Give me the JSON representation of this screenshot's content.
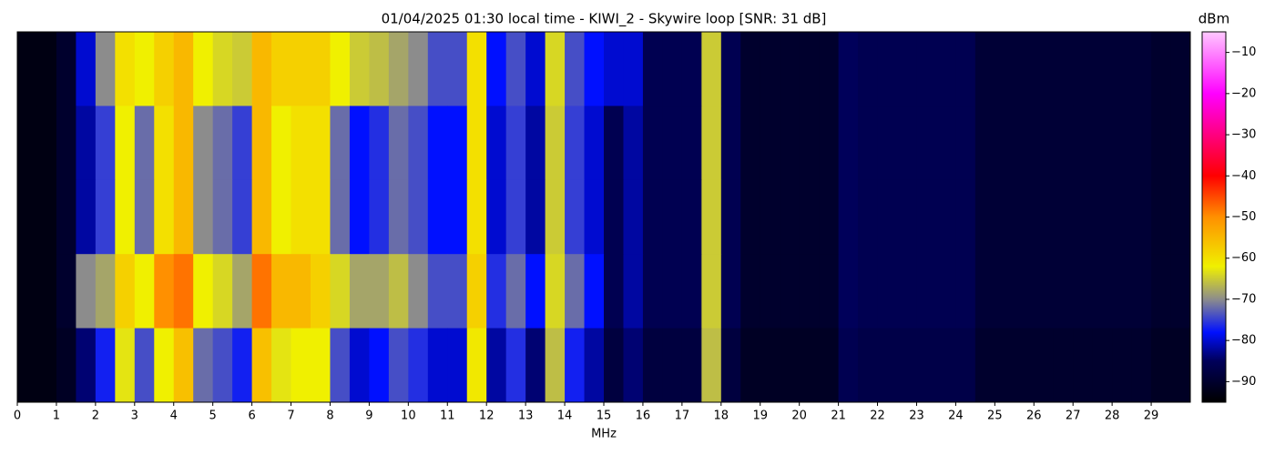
{
  "chart_data": {
    "type": "heatmap",
    "title": "01/04/2025 01:30 local time - KIWI_2 - Skywire loop [SNR: 31 dB]",
    "xlabel": "MHz",
    "colorbar_label": "dBm",
    "xlim": [
      0,
      30
    ],
    "xticks": [
      0,
      1,
      2,
      3,
      4,
      5,
      6,
      7,
      8,
      9,
      10,
      11,
      12,
      13,
      14,
      15,
      16,
      17,
      18,
      19,
      20,
      21,
      22,
      23,
      24,
      25,
      26,
      27,
      28,
      29
    ],
    "clim": [
      -95,
      -5
    ],
    "cticks": [
      {
        "value": -10,
        "label": "−10"
      },
      {
        "value": -20,
        "label": "−20"
      },
      {
        "value": -30,
        "label": "−30"
      },
      {
        "value": -40,
        "label": "−40"
      },
      {
        "value": -50,
        "label": "−50"
      },
      {
        "value": -60,
        "label": "−60"
      },
      {
        "value": -70,
        "label": "−70"
      },
      {
        "value": -80,
        "label": "−80"
      },
      {
        "value": -90,
        "label": "−90"
      }
    ],
    "colormap": [
      {
        "value": -95,
        "color": "#000000"
      },
      {
        "value": -85,
        "color": "#00005a"
      },
      {
        "value": -78,
        "color": "#0010ff"
      },
      {
        "value": -70,
        "color": "#8c8c8c"
      },
      {
        "value": -62,
        "color": "#f0f000"
      },
      {
        "value": -50,
        "color": "#ff9000"
      },
      {
        "value": -40,
        "color": "#ff0000"
      },
      {
        "value": -20,
        "color": "#ff00ff"
      },
      {
        "value": -5,
        "color": "#ffc8ff"
      }
    ],
    "values": [
      [
        -93,
        -93,
        -90,
        -80,
        -70,
        -60,
        -62,
        -58,
        -55,
        -62,
        -64,
        -65,
        -55,
        -58,
        -58,
        -58,
        -62,
        -65,
        -66,
        -68,
        -70,
        -74,
        -74,
        -60,
        -78,
        -74,
        -80,
        -64,
        -74,
        -78,
        -80,
        -80,
        -86,
        -86,
        -86,
        -65,
        -86,
        -90,
        -90,
        -90,
        -90,
        -90,
        -85,
        -86,
        -86,
        -86,
        -86,
        -86,
        -86,
        -89,
        -89,
        -89,
        -89,
        -89,
        -89,
        -89,
        -89,
        -89,
        -90,
        -90
      ],
      [
        -93,
        -93,
        -90,
        -82,
        -75,
        -62,
        -72,
        -60,
        -55,
        -70,
        -72,
        -75,
        -55,
        -62,
        -60,
        -60,
        -72,
        -78,
        -76,
        -72,
        -74,
        -78,
        -78,
        -60,
        -80,
        -75,
        -82,
        -65,
        -75,
        -80,
        -86,
        -82,
        -86,
        -86,
        -86,
        -65,
        -86,
        -90,
        -90,
        -90,
        -90,
        -90,
        -85,
        -86,
        -86,
        -86,
        -86,
        -86,
        -86,
        -89,
        -89,
        -89,
        -89,
        -89,
        -89,
        -89,
        -89,
        -89,
        -90,
        -90
      ],
      [
        -93,
        -93,
        -90,
        -82,
        -75,
        -62,
        -72,
        -60,
        -55,
        -70,
        -72,
        -75,
        -55,
        -62,
        -60,
        -60,
        -72,
        -78,
        -76,
        -72,
        -74,
        -78,
        -78,
        -60,
        -80,
        -75,
        -82,
        -65,
        -75,
        -80,
        -86,
        -82,
        -86,
        -86,
        -86,
        -65,
        -86,
        -90,
        -90,
        -90,
        -90,
        -90,
        -85,
        -86,
        -86,
        -86,
        -86,
        -86,
        -86,
        -89,
        -89,
        -89,
        -89,
        -89,
        -89,
        -89,
        -89,
        -89,
        -90,
        -90
      ],
      [
        -93,
        -93,
        -90,
        -70,
        -68,
        -58,
        -62,
        -50,
        -48,
        -62,
        -64,
        -68,
        -48,
        -55,
        -55,
        -58,
        -64,
        -68,
        -68,
        -66,
        -70,
        -74,
        -74,
        -58,
        -76,
        -72,
        -78,
        -64,
        -72,
        -78,
        -86,
        -82,
        -86,
        -86,
        -86,
        -65,
        -86,
        -90,
        -90,
        -90,
        -90,
        -90,
        -85,
        -86,
        -86,
        -86,
        -86,
        -86,
        -86,
        -89,
        -89,
        -89,
        -89,
        -89,
        -89,
        -89,
        -89,
        -89,
        -90,
        -90
      ],
      [
        -93,
        -93,
        -91,
        -84,
        -77,
        -63,
        -74,
        -62,
        -56,
        -72,
        -74,
        -77,
        -56,
        -63,
        -62,
        -62,
        -74,
        -80,
        -78,
        -74,
        -76,
        -80,
        -80,
        -61,
        -82,
        -76,
        -84,
        -66,
        -77,
        -82,
        -88,
        -84,
        -88,
        -88,
        -88,
        -66,
        -88,
        -91,
        -91,
        -91,
        -91,
        -91,
        -86,
        -87,
        -87,
        -87,
        -87,
        -87,
        -87,
        -90,
        -90,
        -90,
        -90,
        -90,
        -90,
        -90,
        -90,
        -90,
        -91,
        -91
      ]
    ]
  }
}
